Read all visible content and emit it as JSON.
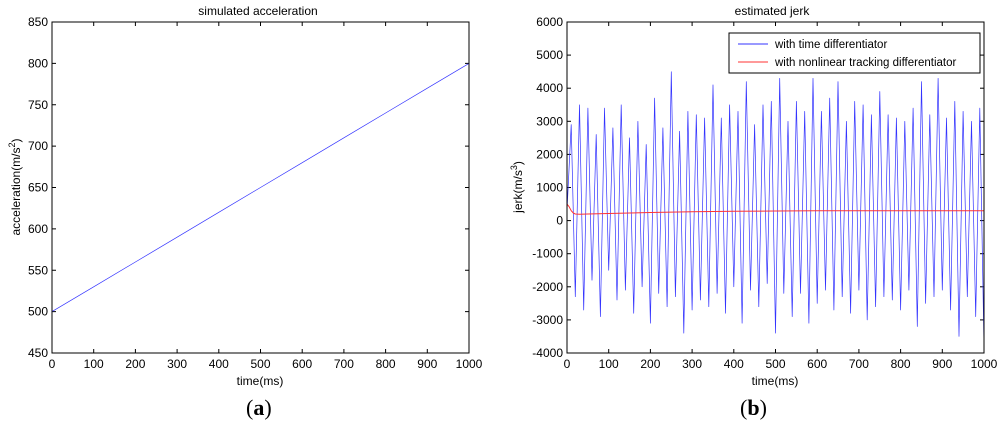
{
  "chart_data": [
    {
      "type": "line",
      "panel_label_open": "(",
      "panel_label_letter": "a",
      "panel_label_close": ")",
      "title": "simulated acceleration",
      "xlabel": "time(ms)",
      "ylabel_prefix": "acceleration(m/s",
      "ylabel_sup": "2",
      "ylabel_suffix": ")",
      "xlim": [
        0,
        1000
      ],
      "ylim": [
        450,
        850
      ],
      "xticks": [
        0,
        100,
        200,
        300,
        400,
        500,
        600,
        700,
        800,
        900,
        1000
      ],
      "yticks": [
        450,
        500,
        550,
        600,
        650,
        700,
        750,
        800,
        850
      ],
      "grid": false,
      "series": [
        {
          "color": "#3333ff",
          "x": [
            0,
            100,
            200,
            300,
            400,
            500,
            600,
            700,
            800,
            900,
            1000
          ],
          "values": [
            500,
            530,
            560,
            590,
            620,
            650,
            680,
            710,
            740,
            770,
            800
          ]
        }
      ]
    },
    {
      "type": "line",
      "panel_label_open": "(",
      "panel_label_letter": "b",
      "panel_label_close": ")",
      "title": "estimated jerk",
      "xlabel": "time(ms)",
      "ylabel_prefix": "jerk(m/s",
      "ylabel_sup": "3",
      "ylabel_suffix": ")",
      "xlim": [
        0,
        1000
      ],
      "ylim": [
        -4000,
        6000
      ],
      "xticks": [
        0,
        100,
        200,
        300,
        400,
        500,
        600,
        700,
        800,
        900,
        1000
      ],
      "yticks": [
        -4000,
        -3000,
        -2000,
        -1000,
        0,
        1000,
        2000,
        3000,
        4000,
        5000,
        6000
      ],
      "grid": false,
      "legend_position": "top-right",
      "series": [
        {
          "name": "with time differentiator",
          "color": "#3333ff",
          "x": [
            0,
            10,
            20,
            30,
            40,
            50,
            60,
            70,
            80,
            90,
            100,
            110,
            120,
            130,
            140,
            150,
            160,
            170,
            180,
            190,
            200,
            210,
            220,
            230,
            240,
            250,
            260,
            270,
            280,
            290,
            300,
            310,
            320,
            330,
            340,
            350,
            360,
            370,
            380,
            390,
            400,
            410,
            420,
            430,
            440,
            450,
            460,
            470,
            480,
            490,
            500,
            510,
            520,
            530,
            540,
            550,
            560,
            570,
            580,
            590,
            600,
            610,
            620,
            630,
            640,
            650,
            660,
            670,
            680,
            690,
            700,
            710,
            720,
            730,
            740,
            750,
            760,
            770,
            780,
            790,
            800,
            810,
            820,
            830,
            840,
            850,
            860,
            870,
            880,
            890,
            900,
            910,
            920,
            930,
            940,
            950,
            960,
            970,
            980,
            990,
            1000
          ],
          "values": [
            300,
            2900,
            -2300,
            3500,
            -2700,
            3400,
            -1800,
            2600,
            -2900,
            3400,
            -1500,
            2800,
            -2400,
            3500,
            -2100,
            2500,
            -2800,
            3000,
            -2000,
            2300,
            -3100,
            3700,
            -2200,
            2800,
            -2600,
            4500,
            -2300,
            2700,
            -3400,
            3300,
            -2700,
            3200,
            -2400,
            3100,
            -2600,
            4100,
            -2200,
            3100,
            -2800,
            3500,
            -2000,
            3300,
            -3100,
            4200,
            -2100,
            2900,
            -2600,
            3500,
            -1900,
            3600,
            -3400,
            4300,
            -2200,
            3000,
            -2900,
            3600,
            -2200,
            3300,
            -3100,
            4300,
            -2500,
            3300,
            -2100,
            3700,
            -2700,
            4200,
            -2300,
            3000,
            -2800,
            3600,
            -2100,
            3500,
            -3000,
            3200,
            -2600,
            3900,
            -2300,
            3200,
            -2400,
            3100,
            -2700,
            3000,
            -2100,
            3400,
            -3200,
            4200,
            -2500,
            3200,
            -2300,
            4300,
            -2100,
            3100,
            -2700,
            3600,
            -3500,
            3300,
            -2300,
            3000,
            -2900,
            3400,
            -3800
          ]
        },
        {
          "name": "with nonlinear tracking differentiator",
          "color": "#ff3333",
          "x": [
            0,
            5,
            10,
            15,
            20,
            30,
            50,
            100,
            150,
            200,
            300,
            400,
            500,
            600,
            700,
            800,
            900,
            1000
          ],
          "values": [
            500,
            420,
            300,
            230,
            200,
            190,
            200,
            215,
            230,
            245,
            265,
            280,
            290,
            295,
            300,
            300,
            300,
            300
          ]
        }
      ]
    }
  ]
}
